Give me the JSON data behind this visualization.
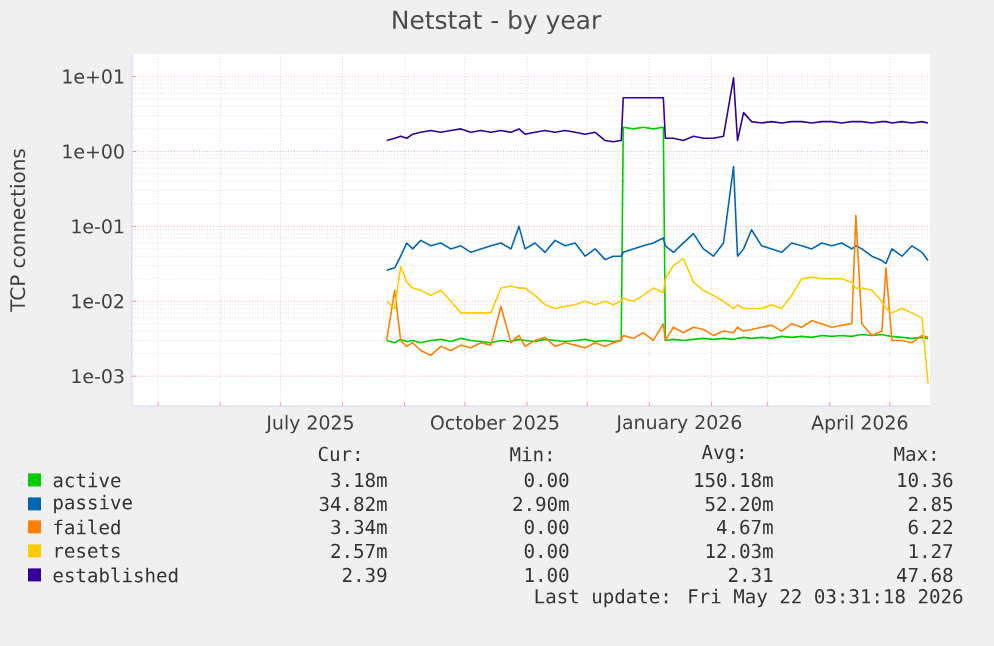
{
  "chart_data": {
    "type": "line",
    "title": "Netstat - by year",
    "ylabel": "TCP connections",
    "log": "y",
    "grid": true,
    "legend": "bottom",
    "xlim": [
      "2025-04-18",
      "2026-05-21"
    ],
    "xticks": [
      {
        "value": "2025-05-01",
        "label": null
      },
      {
        "value": "2025-06-01",
        "label": null
      },
      {
        "value": "2025-07-01",
        "label": null
      },
      {
        "value": "2025-08-01",
        "label": null
      },
      {
        "value": "2025-09-01",
        "label": null
      },
      {
        "value": "2025-10-01",
        "label": null
      },
      {
        "value": "2025-11-01",
        "label": null
      },
      {
        "value": "2025-12-01",
        "label": null
      },
      {
        "value": "2026-01-01",
        "label": null
      },
      {
        "value": "2026-02-01",
        "label": null
      },
      {
        "value": "2026-03-01",
        "label": null
      },
      {
        "value": "2026-04-01",
        "label": null
      },
      {
        "value": "2026-05-01",
        "label": null
      },
      {
        "value": "2025-07-16",
        "label": "July 2025"
      },
      {
        "value": "2025-10-16",
        "label": "October 2025"
      },
      {
        "value": "2026-01-16",
        "label": "January 2026"
      },
      {
        "value": "2026-04-16",
        "label": "April 2026"
      }
    ],
    "ylim": [
      0.0004,
      20
    ],
    "yticks": [
      {
        "value": 0.001,
        "label": "1e-03"
      },
      {
        "value": 0.01,
        "label": "1e-02"
      },
      {
        "value": 0.1,
        "label": "1e-01"
      },
      {
        "value": 1,
        "label": "1e+00"
      },
      {
        "value": 10,
        "label": "1e+01"
      }
    ],
    "x": [
      "2025-08-23",
      "2025-08-27",
      "2025-08-30",
      "2025-09-02",
      "2025-09-05",
      "2025-09-09",
      "2025-09-14",
      "2025-09-19",
      "2025-09-24",
      "2025-09-29",
      "2025-10-04",
      "2025-10-09",
      "2025-10-14",
      "2025-10-19",
      "2025-10-24",
      "2025-10-28",
      "2025-10-31",
      "2025-11-05",
      "2025-11-10",
      "2025-11-15",
      "2025-11-20",
      "2025-11-25",
      "2025-11-30",
      "2025-12-05",
      "2025-12-10",
      "2025-12-14",
      "2025-12-18",
      "2025-12-19",
      "2025-12-24",
      "2025-12-29",
      "2026-01-03",
      "2026-01-08",
      "2026-01-09",
      "2026-01-13",
      "2026-01-18",
      "2026-01-23",
      "2026-01-28",
      "2026-02-02",
      "2026-02-07",
      "2026-02-12",
      "2026-02-14",
      "2026-02-17",
      "2026-02-21",
      "2026-02-26",
      "2026-03-03",
      "2026-03-08",
      "2026-03-13",
      "2026-03-18",
      "2026-03-23",
      "2026-03-28",
      "2026-04-02",
      "2026-04-07",
      "2026-04-12",
      "2026-04-14",
      "2026-04-17",
      "2026-04-22",
      "2026-04-27",
      "2026-04-29",
      "2026-05-02",
      "2026-05-07",
      "2026-05-12",
      "2026-05-17",
      "2026-05-20"
    ],
    "series": [
      {
        "name": "active",
        "color": "#00cc00",
        "values": [
          0.003,
          0.0028,
          0.0031,
          0.0029,
          0.003,
          0.0028,
          0.003,
          0.0031,
          0.0029,
          0.0032,
          0.003,
          0.0029,
          0.0028,
          0.003,
          0.0029,
          0.0031,
          0.003,
          0.0029,
          0.0031,
          0.003,
          0.0029,
          0.003,
          0.0031,
          0.0029,
          0.003,
          0.0029,
          0.003,
          2.1,
          2.0,
          2.1,
          2.0,
          2.1,
          0.003,
          0.0031,
          0.003,
          0.0031,
          0.0032,
          0.0031,
          0.0032,
          0.0031,
          0.0032,
          0.0033,
          0.0032,
          0.0033,
          0.0032,
          0.0034,
          0.0033,
          0.0034,
          0.0033,
          0.0035,
          0.0034,
          0.0035,
          0.0034,
          0.0035,
          0.0036,
          0.0035,
          0.0036,
          0.0035,
          0.0034,
          0.0033,
          0.0032,
          0.0033,
          0.0032
        ]
      },
      {
        "name": "passive",
        "color": "#0066b3",
        "values": [
          0.026,
          0.028,
          0.04,
          0.06,
          0.05,
          0.065,
          0.055,
          0.06,
          0.05,
          0.055,
          0.045,
          0.05,
          0.055,
          0.06,
          0.05,
          0.1,
          0.05,
          0.06,
          0.045,
          0.065,
          0.055,
          0.06,
          0.04,
          0.05,
          0.036,
          0.04,
          0.04,
          0.045,
          0.05,
          0.055,
          0.06,
          0.07,
          0.055,
          0.045,
          0.06,
          0.08,
          0.05,
          0.04,
          0.06,
          0.63,
          0.04,
          0.05,
          0.09,
          0.055,
          0.05,
          0.045,
          0.06,
          0.055,
          0.05,
          0.06,
          0.055,
          0.06,
          0.05,
          0.055,
          0.05,
          0.04,
          0.035,
          0.032,
          0.05,
          0.04,
          0.055,
          0.045,
          0.035
        ]
      },
      {
        "name": "failed",
        "color": "#ff8000",
        "values": [
          0.003,
          0.014,
          0.003,
          0.0025,
          0.0028,
          0.0022,
          0.0019,
          0.0025,
          0.0022,
          0.0026,
          0.0024,
          0.0028,
          0.0026,
          0.0085,
          0.0028,
          0.0035,
          0.0025,
          0.003,
          0.0033,
          0.0025,
          0.0028,
          0.0026,
          0.0024,
          0.0028,
          0.0025,
          0.0028,
          0.003,
          0.0035,
          0.0032,
          0.0038,
          0.003,
          0.005,
          0.003,
          0.0045,
          0.0038,
          0.0045,
          0.0042,
          0.0035,
          0.004,
          0.0038,
          0.0045,
          0.004,
          0.0042,
          0.0045,
          0.0048,
          0.004,
          0.005,
          0.0045,
          0.0055,
          0.005,
          0.0045,
          0.0048,
          0.005,
          0.14,
          0.005,
          0.0035,
          0.004,
          0.028,
          0.003,
          0.003,
          0.0028,
          0.0035,
          0.0033
        ]
      },
      {
        "name": "resets",
        "color": "#ffcc00",
        "values": [
          0.01,
          0.008,
          0.029,
          0.018,
          0.015,
          0.014,
          0.012,
          0.014,
          0.01,
          0.007,
          0.007,
          0.007,
          0.007,
          0.015,
          0.016,
          0.015,
          0.015,
          0.012,
          0.009,
          0.008,
          0.0085,
          0.009,
          0.01,
          0.009,
          0.01,
          0.009,
          0.01,
          0.011,
          0.01,
          0.012,
          0.015,
          0.013,
          0.02,
          0.03,
          0.037,
          0.018,
          0.014,
          0.012,
          0.01,
          0.008,
          0.009,
          0.008,
          0.008,
          0.008,
          0.009,
          0.008,
          0.012,
          0.02,
          0.021,
          0.02,
          0.02,
          0.02,
          0.018,
          0.015,
          0.015,
          0.014,
          0.01,
          0.008,
          0.007,
          0.008,
          0.007,
          0.006,
          0.0008
        ]
      },
      {
        "name": "established",
        "color": "#330099",
        "values": [
          1.4,
          1.5,
          1.6,
          1.5,
          1.7,
          1.8,
          1.9,
          1.8,
          1.9,
          2.0,
          1.8,
          1.9,
          1.8,
          1.9,
          1.8,
          2.0,
          1.7,
          1.8,
          1.9,
          1.8,
          1.9,
          1.8,
          1.7,
          1.8,
          1.4,
          1.35,
          1.4,
          5.2,
          5.2,
          5.2,
          5.2,
          5.2,
          1.5,
          1.5,
          1.4,
          1.6,
          1.5,
          1.5,
          1.6,
          9.6,
          1.4,
          3.3,
          2.5,
          2.4,
          2.5,
          2.4,
          2.5,
          2.5,
          2.4,
          2.5,
          2.5,
          2.4,
          2.5,
          2.5,
          2.5,
          2.4,
          2.5,
          2.5,
          2.4,
          2.5,
          2.4,
          2.5,
          2.4
        ]
      }
    ],
    "annotations": [
      "Cur:",
      "Min:",
      "Avg:",
      "Max:",
      "3.18m",
      "0.00",
      "150.18m",
      "10.36",
      "34.82m",
      "2.90m",
      "52.20m",
      "2.85",
      "3.34m",
      "0.00",
      "4.67m",
      "6.22",
      "2.57m",
      "0.00",
      "12.03m",
      "1.27",
      "2.39",
      "1.00",
      "2.31",
      "47.68",
      "Last update: Fri May 22 03:31:18 2026"
    ]
  }
}
